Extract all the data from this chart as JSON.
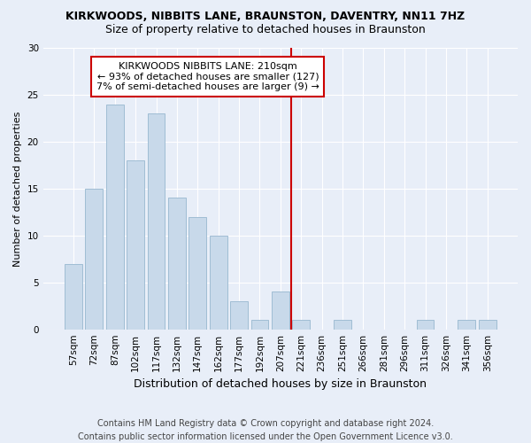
{
  "title": "KIRKWOODS, NIBBITS LANE, BRAUNSTON, DAVENTRY, NN11 7HZ",
  "subtitle": "Size of property relative to detached houses in Braunston",
  "xlabel": "Distribution of detached houses by size in Braunston",
  "ylabel": "Number of detached properties",
  "categories": [
    "57sqm",
    "72sqm",
    "87sqm",
    "102sqm",
    "117sqm",
    "132sqm",
    "147sqm",
    "162sqm",
    "177sqm",
    "192sqm",
    "207sqm",
    "221sqm",
    "236sqm",
    "251sqm",
    "266sqm",
    "281sqm",
    "296sqm",
    "311sqm",
    "326sqm",
    "341sqm",
    "356sqm"
  ],
  "values": [
    7,
    15,
    24,
    18,
    23,
    14,
    12,
    10,
    3,
    1,
    4,
    1,
    0,
    1,
    0,
    0,
    0,
    1,
    0,
    1,
    1
  ],
  "bar_color": "#c8d9ea",
  "bar_edge_color": "#a0bdd4",
  "subject_line_label": "KIRKWOODS NIBBITS LANE: 210sqm",
  "annotation_line1": "← 93% of detached houses are smaller (127)",
  "annotation_line2": "7% of semi-detached houses are larger (9) →",
  "annotation_box_color": "#ffffff",
  "annotation_box_edge_color": "#cc0000",
  "subject_line_color": "#cc0000",
  "subject_bar_index": 10,
  "ylim": [
    0,
    30
  ],
  "yticks": [
    0,
    5,
    10,
    15,
    20,
    25,
    30
  ],
  "footer_line1": "Contains HM Land Registry data © Crown copyright and database right 2024.",
  "footer_line2": "Contains public sector information licensed under the Open Government Licence v3.0.",
  "background_color": "#e8eef8",
  "title_fontsize": 9,
  "subtitle_fontsize": 9,
  "ylabel_fontsize": 8,
  "xlabel_fontsize": 9,
  "tick_fontsize": 7.5,
  "footer_fontsize": 7,
  "annotation_fontsize": 8
}
